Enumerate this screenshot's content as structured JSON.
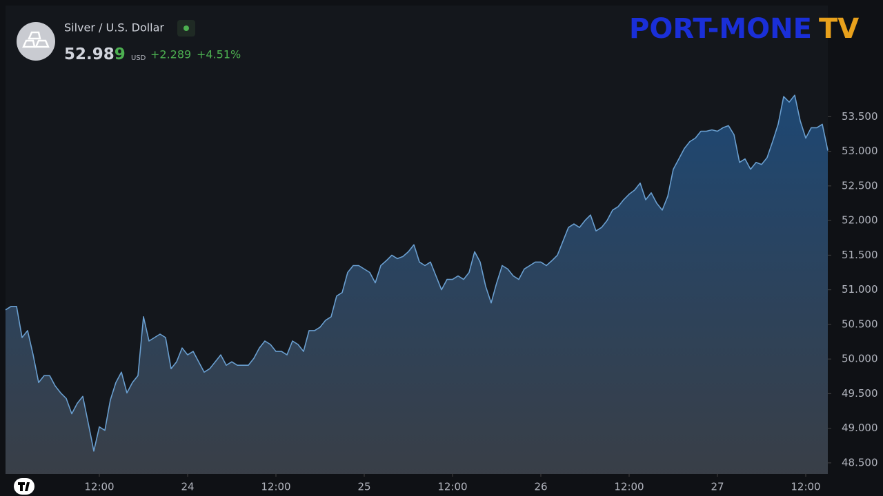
{
  "header": {
    "symbol": "Silver / U.S. Dollar",
    "price_main": "52.98",
    "price_last": "9",
    "currency": "USD",
    "change": "+2.289",
    "change_pct": "+4.51%",
    "logo_main": "PORT-MONE",
    "logo_sub": "TV"
  },
  "chart_data": {
    "type": "area",
    "series": [
      {
        "color": "#6a9fd0",
        "x": [
          -0.75,
          0,
          0.75,
          1.5,
          2.25,
          3,
          3.75,
          4.5,
          5.25,
          6,
          6.75,
          7.5,
          8.25,
          9,
          9.75,
          10.5,
          11.25,
          12,
          12.75,
          13.5,
          14.25,
          15,
          15.75,
          16.5,
          17.25,
          18,
          18.75,
          19.5,
          20.25,
          21,
          21.75,
          22.5,
          23.25,
          24,
          24.75,
          25.5,
          26.25,
          27,
          27.75,
          28.5,
          29.25,
          30,
          30.75,
          31.5,
          32.25,
          33,
          33.75,
          34.5,
          35.25,
          36,
          36.75,
          37.5,
          38.25,
          39,
          39.75,
          40.5,
          41.25,
          42,
          42.75,
          43.5,
          44.25,
          45,
          45.75,
          46.5,
          47.25,
          48,
          48.75,
          49.5,
          50.25,
          51,
          51.75,
          52.5,
          53.25,
          54,
          54.75,
          55.5,
          56.25,
          57,
          57.75,
          58.5,
          59.25,
          60,
          60.75,
          61.5,
          62.25,
          63,
          63.75,
          64.5,
          65.25,
          66,
          66.75,
          67.5,
          68.25,
          69,
          69.75,
          70.5,
          71.25,
          72,
          72.75,
          73.5,
          74.25,
          75,
          75.75,
          76.5,
          77.25,
          78,
          78.75,
          79.5,
          80.25,
          81,
          81.75,
          82.5,
          83.25,
          84,
          84.75,
          85.5,
          86.25,
          87,
          87.75,
          88.5,
          89.25,
          90,
          90.75,
          91.5,
          92.25,
          93,
          93.75,
          94.5,
          95.25,
          96,
          96.75,
          97.5,
          98.25,
          99,
          99.75,
          100.5,
          101.25,
          102,
          102.75,
          103.5,
          104.25,
          105,
          105.75,
          106.5,
          107.25,
          108,
          108.75,
          109.5,
          110.25,
          111
        ],
        "values": [
          50.71,
          50.76,
          50.76,
          50.31,
          50.41,
          50.06,
          49.66,
          49.76,
          49.76,
          49.61,
          49.51,
          49.43,
          49.21,
          49.36,
          49.46,
          49.07,
          48.67,
          49.02,
          48.97,
          49.41,
          49.66,
          49.81,
          49.51,
          49.66,
          49.76,
          50.61,
          50.26,
          50.31,
          50.36,
          50.31,
          49.86,
          49.96,
          50.16,
          50.06,
          50.11,
          49.96,
          49.81,
          49.86,
          49.96,
          50.06,
          49.91,
          49.96,
          49.91,
          49.91,
          49.91,
          50.01,
          50.16,
          50.26,
          50.21,
          50.11,
          50.11,
          50.06,
          50.26,
          50.21,
          50.11,
          50.41,
          50.41,
          50.46,
          50.56,
          50.61,
          50.91,
          50.96,
          51.25,
          51.35,
          51.35,
          51.3,
          51.25,
          51.1,
          51.35,
          51.42,
          51.5,
          51.45,
          51.48,
          51.55,
          51.65,
          51.4,
          51.35,
          51.4,
          51.2,
          51.0,
          51.15,
          51.15,
          51.2,
          51.15,
          51.25,
          51.55,
          51.4,
          51.05,
          50.81,
          51.1,
          51.35,
          51.3,
          51.2,
          51.15,
          51.3,
          51.35,
          51.4,
          51.4,
          51.35,
          51.42,
          51.5,
          51.7,
          51.9,
          51.95,
          51.9,
          52.0,
          52.08,
          51.85,
          51.9,
          52.0,
          52.15,
          52.2,
          52.3,
          52.38,
          52.44,
          52.54,
          52.3,
          52.4,
          52.25,
          52.15,
          52.35,
          52.74,
          52.89,
          53.04,
          53.14,
          53.19,
          53.29,
          53.29,
          53.31,
          53.29,
          53.34,
          53.37,
          53.24,
          52.84,
          52.89,
          52.74,
          52.84,
          52.81,
          52.91,
          53.14,
          53.39,
          53.79,
          53.71,
          53.81,
          53.44,
          53.19,
          53.34,
          53.34,
          53.39,
          53.01
        ]
      }
    ],
    "xlim": [
      -0.75,
      111
    ],
    "xticks": [
      {
        "value": 12,
        "label": "12:00"
      },
      24,
      {
        "value": 36,
        "label": "12:00"
      },
      {
        "value": 48,
        "label": "25"
      },
      {
        "value": 60,
        "label": "12:00"
      },
      {
        "value": 72,
        "label": "26"
      },
      {
        "value": 84,
        "label": "12:00"
      },
      {
        "value": 96,
        "label": "27"
      },
      {
        "value": 108,
        "label": "12:00"
      }
    ],
    "ylim": [
      48.34,
      54.19
    ],
    "yticks": [
      {
        "value": 48.5,
        "label": "48.500"
      },
      {
        "value": 49,
        "label": "49.000"
      },
      {
        "value": 49.5,
        "label": "49.500"
      },
      {
        "value": 50,
        "label": "50.000"
      },
      {
        "value": 50.5,
        "label": "50.500"
      },
      {
        "value": 51,
        "label": "51.000"
      },
      {
        "value": 51.5,
        "label": "51.500"
      },
      {
        "value": 52,
        "label": "52.000"
      },
      {
        "value": 52.5,
        "label": "52.500"
      },
      {
        "value": 53,
        "label": "53.000"
      },
      {
        "value": 53.5,
        "label": "53.500"
      }
    ],
    "grid": false
  }
}
